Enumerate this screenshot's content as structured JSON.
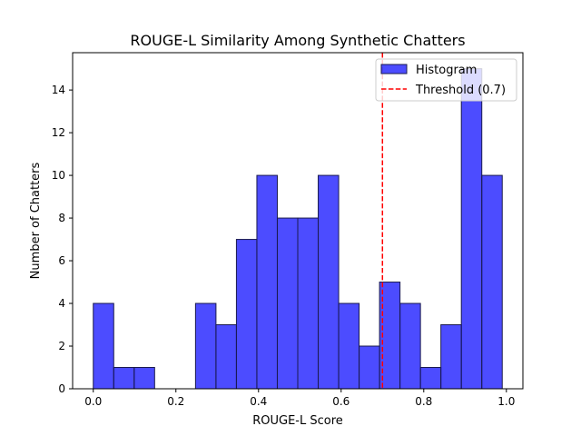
{
  "chart_data": {
    "type": "bar",
    "title": "ROUGE-L Similarity Among Synthetic Chatters",
    "xlabel": "ROUGE-L Score",
    "ylabel": "Number of Chatters",
    "xlim": [
      -0.05,
      1.04
    ],
    "ylim": [
      0,
      15.75
    ],
    "xticks": [
      0.0,
      0.2,
      0.4,
      0.6,
      0.8,
      1.0
    ],
    "xtick_labels": [
      "0.0",
      "0.2",
      "0.4",
      "0.6",
      "0.8",
      "1.0"
    ],
    "yticks": [
      0,
      2,
      4,
      6,
      8,
      10,
      12,
      14
    ],
    "ytick_labels": [
      "0",
      "2",
      "4",
      "6",
      "8",
      "10",
      "12",
      "14"
    ],
    "grid": false,
    "legend_position": "top-right",
    "series": [
      {
        "name": "Histogram",
        "kind": "histogram",
        "color": "#0000ff",
        "edge_color": "#1a1a4d",
        "bins": [
          0.0,
          0.0495,
          0.099,
          0.1485,
          0.198,
          0.2475,
          0.297,
          0.3465,
          0.396,
          0.4455,
          0.495,
          0.5445,
          0.594,
          0.6435,
          0.693,
          0.7425,
          0.792,
          0.8415,
          0.891,
          0.9405,
          0.99
        ],
        "values": [
          4,
          1,
          1,
          0,
          0,
          4,
          3,
          7,
          10,
          8,
          8,
          10,
          4,
          2,
          5,
          4,
          1,
          3,
          15,
          10
        ]
      },
      {
        "name": "Threshold (0.7)",
        "kind": "vline",
        "x": 0.7,
        "color": "#ff0000",
        "style": "dashed"
      }
    ]
  }
}
